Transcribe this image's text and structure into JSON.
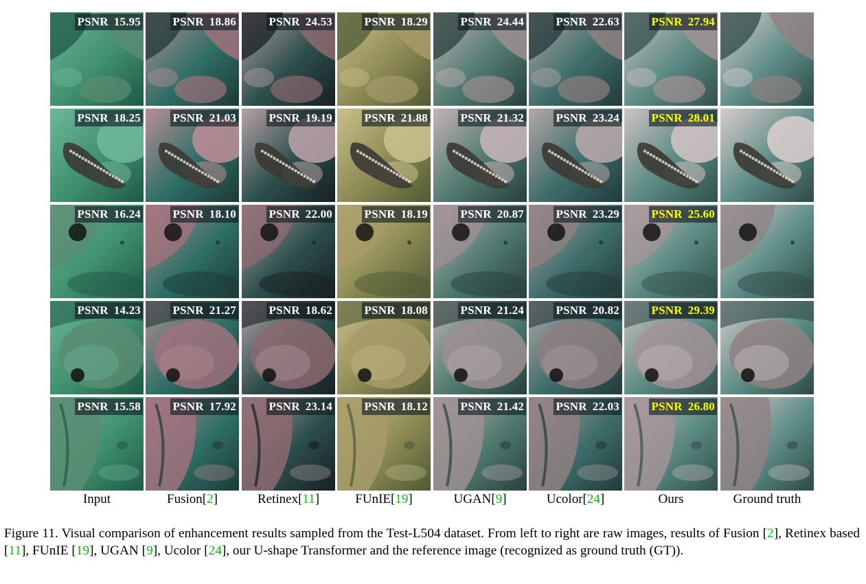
{
  "figure": {
    "metric_label": "PSNR",
    "columns": [
      {
        "name": "Input",
        "ref": ""
      },
      {
        "name": "Fusion",
        "ref": "2"
      },
      {
        "name": "Retinex",
        "ref": "11"
      },
      {
        "name": "FUnIE",
        "ref": "19"
      },
      {
        "name": "UGAN",
        "ref": "9"
      },
      {
        "name": "Ucolor",
        "ref": "24"
      },
      {
        "name": "Ours",
        "ref": ""
      },
      {
        "name": "Ground truth",
        "ref": ""
      }
    ],
    "rows": [
      {
        "scene": "rock reef",
        "psnr": [
          "15.95",
          "18.86",
          "24.53",
          "18.29",
          "24.44",
          "22.63",
          "27.94",
          null
        ]
      },
      {
        "scene": "pufferfish and coral",
        "psnr": [
          "18.25",
          "21.03",
          "19.19",
          "21.88",
          "21.32",
          "23.24",
          "28.01",
          null
        ]
      },
      {
        "scene": "reef with sea urchin",
        "psnr": [
          "16.24",
          "18.10",
          "22.00",
          "18.19",
          "20.87",
          "23.29",
          "25.60",
          null
        ]
      },
      {
        "scene": "boulder with urchin",
        "psnr": [
          "14.23",
          "21.27",
          "18.62",
          "18.08",
          "21.24",
          "20.82",
          "29.39",
          null
        ]
      },
      {
        "scene": "rock slope on sand",
        "psnr": [
          "15.58",
          "17.92",
          "23.14",
          "18.12",
          "21.42",
          "22.03",
          "26.80",
          null
        ]
      }
    ],
    "best_column": 6,
    "highlight_color": "#ffff00",
    "reference_color": "#00c400"
  },
  "caption": {
    "label": "Figure 11.",
    "text_parts": [
      "Visual comparison of enhancement results sampled from the Test-L504 dataset.  From left to right are raw images, results of Fusion [",
      {
        "ref": "2"
      },
      "], Retinex based [",
      {
        "ref": "11"
      },
      "], FUnIE [",
      {
        "ref": "19"
      },
      "], UGAN [",
      {
        "ref": "9"
      },
      "], Ucolor [",
      {
        "ref": "24"
      },
      "], our U-shape Transformer and the reference image (recognized as ground truth (GT))."
    ]
  }
}
